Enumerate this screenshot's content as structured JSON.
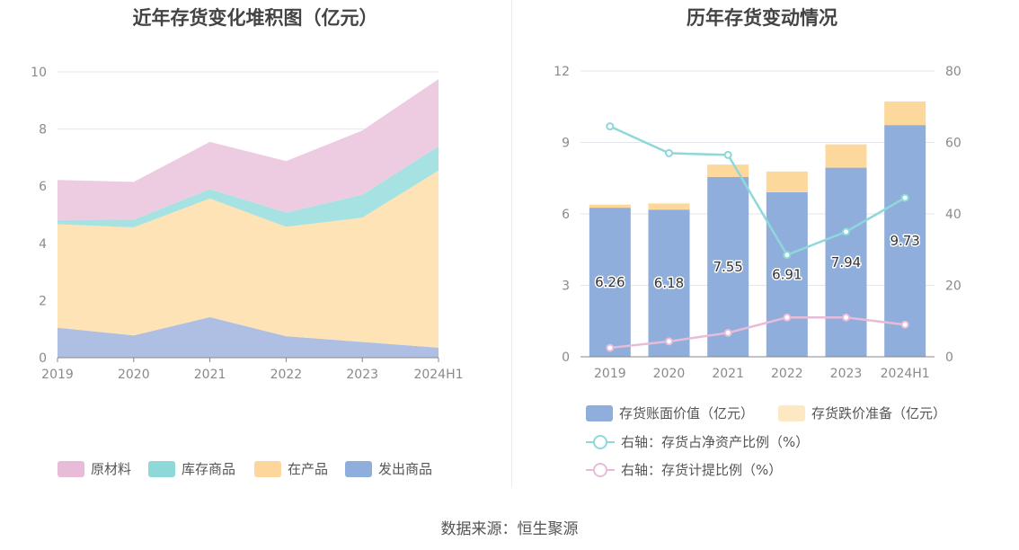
{
  "source": "数据来源：恒生聚源",
  "chart_data": [
    {
      "type": "area",
      "title": "近年存货变化堆积图（亿元）",
      "stacked": true,
      "categories": [
        "2019",
        "2020",
        "2021",
        "2022",
        "2023",
        "2024H1"
      ],
      "ylim": [
        0,
        10
      ],
      "yticks": [
        "0",
        "2",
        "4",
        "6",
        "8",
        "10"
      ],
      "grid": true,
      "legend_position": "bottom",
      "series": [
        {
          "name": "发出商品",
          "values": [
            1.05,
            0.78,
            1.42,
            0.75,
            0.55,
            0.35
          ],
          "color": "#aebfe3"
        },
        {
          "name": "在产品",
          "values": [
            3.62,
            3.78,
            4.15,
            3.83,
            4.35,
            6.2
          ],
          "color": "#fde3b5"
        },
        {
          "name": "库存商品",
          "values": [
            0.15,
            0.27,
            0.33,
            0.5,
            0.8,
            0.85
          ],
          "color": "#a7e2e3"
        },
        {
          "name": "原材料",
          "values": [
            1.4,
            1.32,
            1.65,
            1.8,
            2.25,
            2.35
          ],
          "color": "#edcce2"
        }
      ],
      "legend_order": [
        "原材料",
        "库存商品",
        "在产品",
        "发出商品"
      ],
      "legend_colors": {
        "原材料": "#e8bcd8",
        "库存商品": "#8ed8da",
        "在产品": "#fcd69b",
        "发出商品": "#8faedc"
      }
    },
    {
      "type": "bar",
      "title": "历年存货变动情况",
      "stacked": true,
      "categories": [
        "2019",
        "2020",
        "2021",
        "2022",
        "2023",
        "2024H1"
      ],
      "ylim": [
        0,
        12
      ],
      "yticks": [
        "0",
        "3",
        "6",
        "9",
        "12"
      ],
      "y2lim": [
        0,
        80
      ],
      "y2ticks": [
        "0",
        "20",
        "40",
        "60",
        "80"
      ],
      "grid": true,
      "legend_position": "bottom",
      "series": [
        {
          "name": "存货账面价值（亿元）",
          "axis": "left",
          "values": [
            6.26,
            6.18,
            7.55,
            6.91,
            7.94,
            9.73
          ],
          "labels": [
            "6.26",
            "6.18",
            "7.55",
            "6.91",
            "7.94",
            "9.73"
          ],
          "color": "#8faedc"
        },
        {
          "name": "存货跌价准备（亿元）",
          "axis": "left",
          "values": [
            0.13,
            0.26,
            0.52,
            0.87,
            0.98,
            0.99
          ],
          "color": "#fcd89d"
        }
      ],
      "lines": [
        {
          "name": "右轴：存货占净资产比例（%）",
          "axis": "right",
          "values": [
            64.5,
            57,
            56.5,
            28.5,
            35,
            44.5
          ],
          "color": "#8ed8da"
        },
        {
          "name": "右轴：存货计提比例（%）",
          "axis": "right",
          "values": [
            2.5,
            4.3,
            6.7,
            11,
            11,
            9
          ],
          "color": "#e8bcd8"
        }
      ],
      "legend_swatch_colors": [
        "#8faedc",
        "#fde8c4"
      ]
    }
  ]
}
